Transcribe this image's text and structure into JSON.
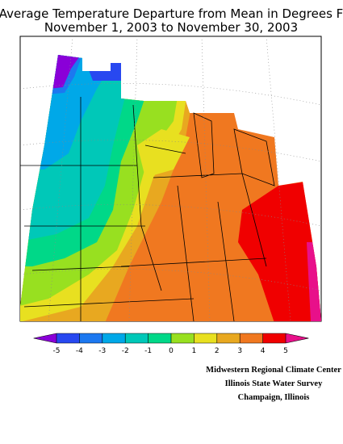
{
  "title": [
    "Average Temperature Departure from Mean in Degrees F",
    "November 1, 2003 to November 30, 2003"
  ],
  "legend": {
    "ticks": [
      -5,
      -4,
      -3,
      -2,
      -1,
      0,
      1,
      2,
      3,
      4,
      5
    ],
    "colors": [
      "#8a00d8",
      "#2848f0",
      "#1c78f0",
      "#00a8e8",
      "#00c8b8",
      "#00d888",
      "#98e020",
      "#e8e020",
      "#e8a820",
      "#f07820",
      "#f00000",
      "#e8108a"
    ]
  },
  "credits": [
    "Midwestern Regional Climate Center",
    "Illinois State Water Survey",
    "Champaign, Illinois"
  ]
}
